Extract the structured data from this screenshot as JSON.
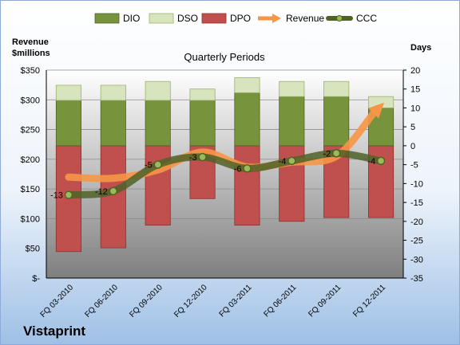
{
  "chart_data": {
    "type": "bar",
    "title": "Quarterly Periods",
    "brand": "Vistaprint",
    "ylabel_left": "Revenue $millions",
    "ylabel_right": "Days",
    "ylim_left": [
      0,
      350
    ],
    "ylim_right": [
      -35,
      20
    ],
    "left_ticks": [
      "$-",
      "$50",
      "$100",
      "$150",
      "$200",
      "$250",
      "$300",
      "$350"
    ],
    "right_ticks": [
      "-35",
      "-30",
      "-25",
      "-20",
      "-15",
      "-10",
      "-5",
      "0",
      "5",
      "10",
      "15",
      "20"
    ],
    "categories": [
      "FQ 03-2010",
      "FQ 06-2010",
      "FQ 09-2010",
      "FQ 12-2010",
      "FQ 03-2011",
      "FQ 06-2011",
      "FQ 09-2011",
      "FQ 12-2011"
    ],
    "legend": [
      "DIO",
      "DSO",
      "DPO",
      "Revenue",
      "CCC"
    ],
    "colors": {
      "DIO": "#77933c",
      "DSO": "#d7e4bd",
      "DPO": "#c0504d",
      "Revenue": "#f79646",
      "CCC": "#4f6228"
    },
    "series": [
      {
        "name": "DPO",
        "axis": "days",
        "values": [
          -28,
          -27,
          -21,
          -14,
          -21,
          -20,
          -19,
          -19
        ]
      },
      {
        "name": "DIO",
        "axis": "days",
        "values": [
          12,
          12,
          12,
          12,
          14,
          13,
          13,
          10
        ]
      },
      {
        "name": "DSO",
        "axis": "days",
        "values": [
          4,
          4,
          5,
          3,
          4,
          4,
          4,
          3
        ]
      },
      {
        "name": "Revenue",
        "axis": "revenue",
        "values": [
          170,
          168,
          182,
          212,
          187,
          195,
          205,
          290
        ]
      },
      {
        "name": "CCC",
        "axis": "days",
        "values": [
          -13,
          -12,
          -5,
          -3,
          -6,
          -4,
          -2,
          -4
        ]
      }
    ],
    "ccc_labels": [
      "-13",
      "-12",
      "-5",
      "-3",
      "-6",
      "-4",
      "-2",
      "-4"
    ]
  }
}
